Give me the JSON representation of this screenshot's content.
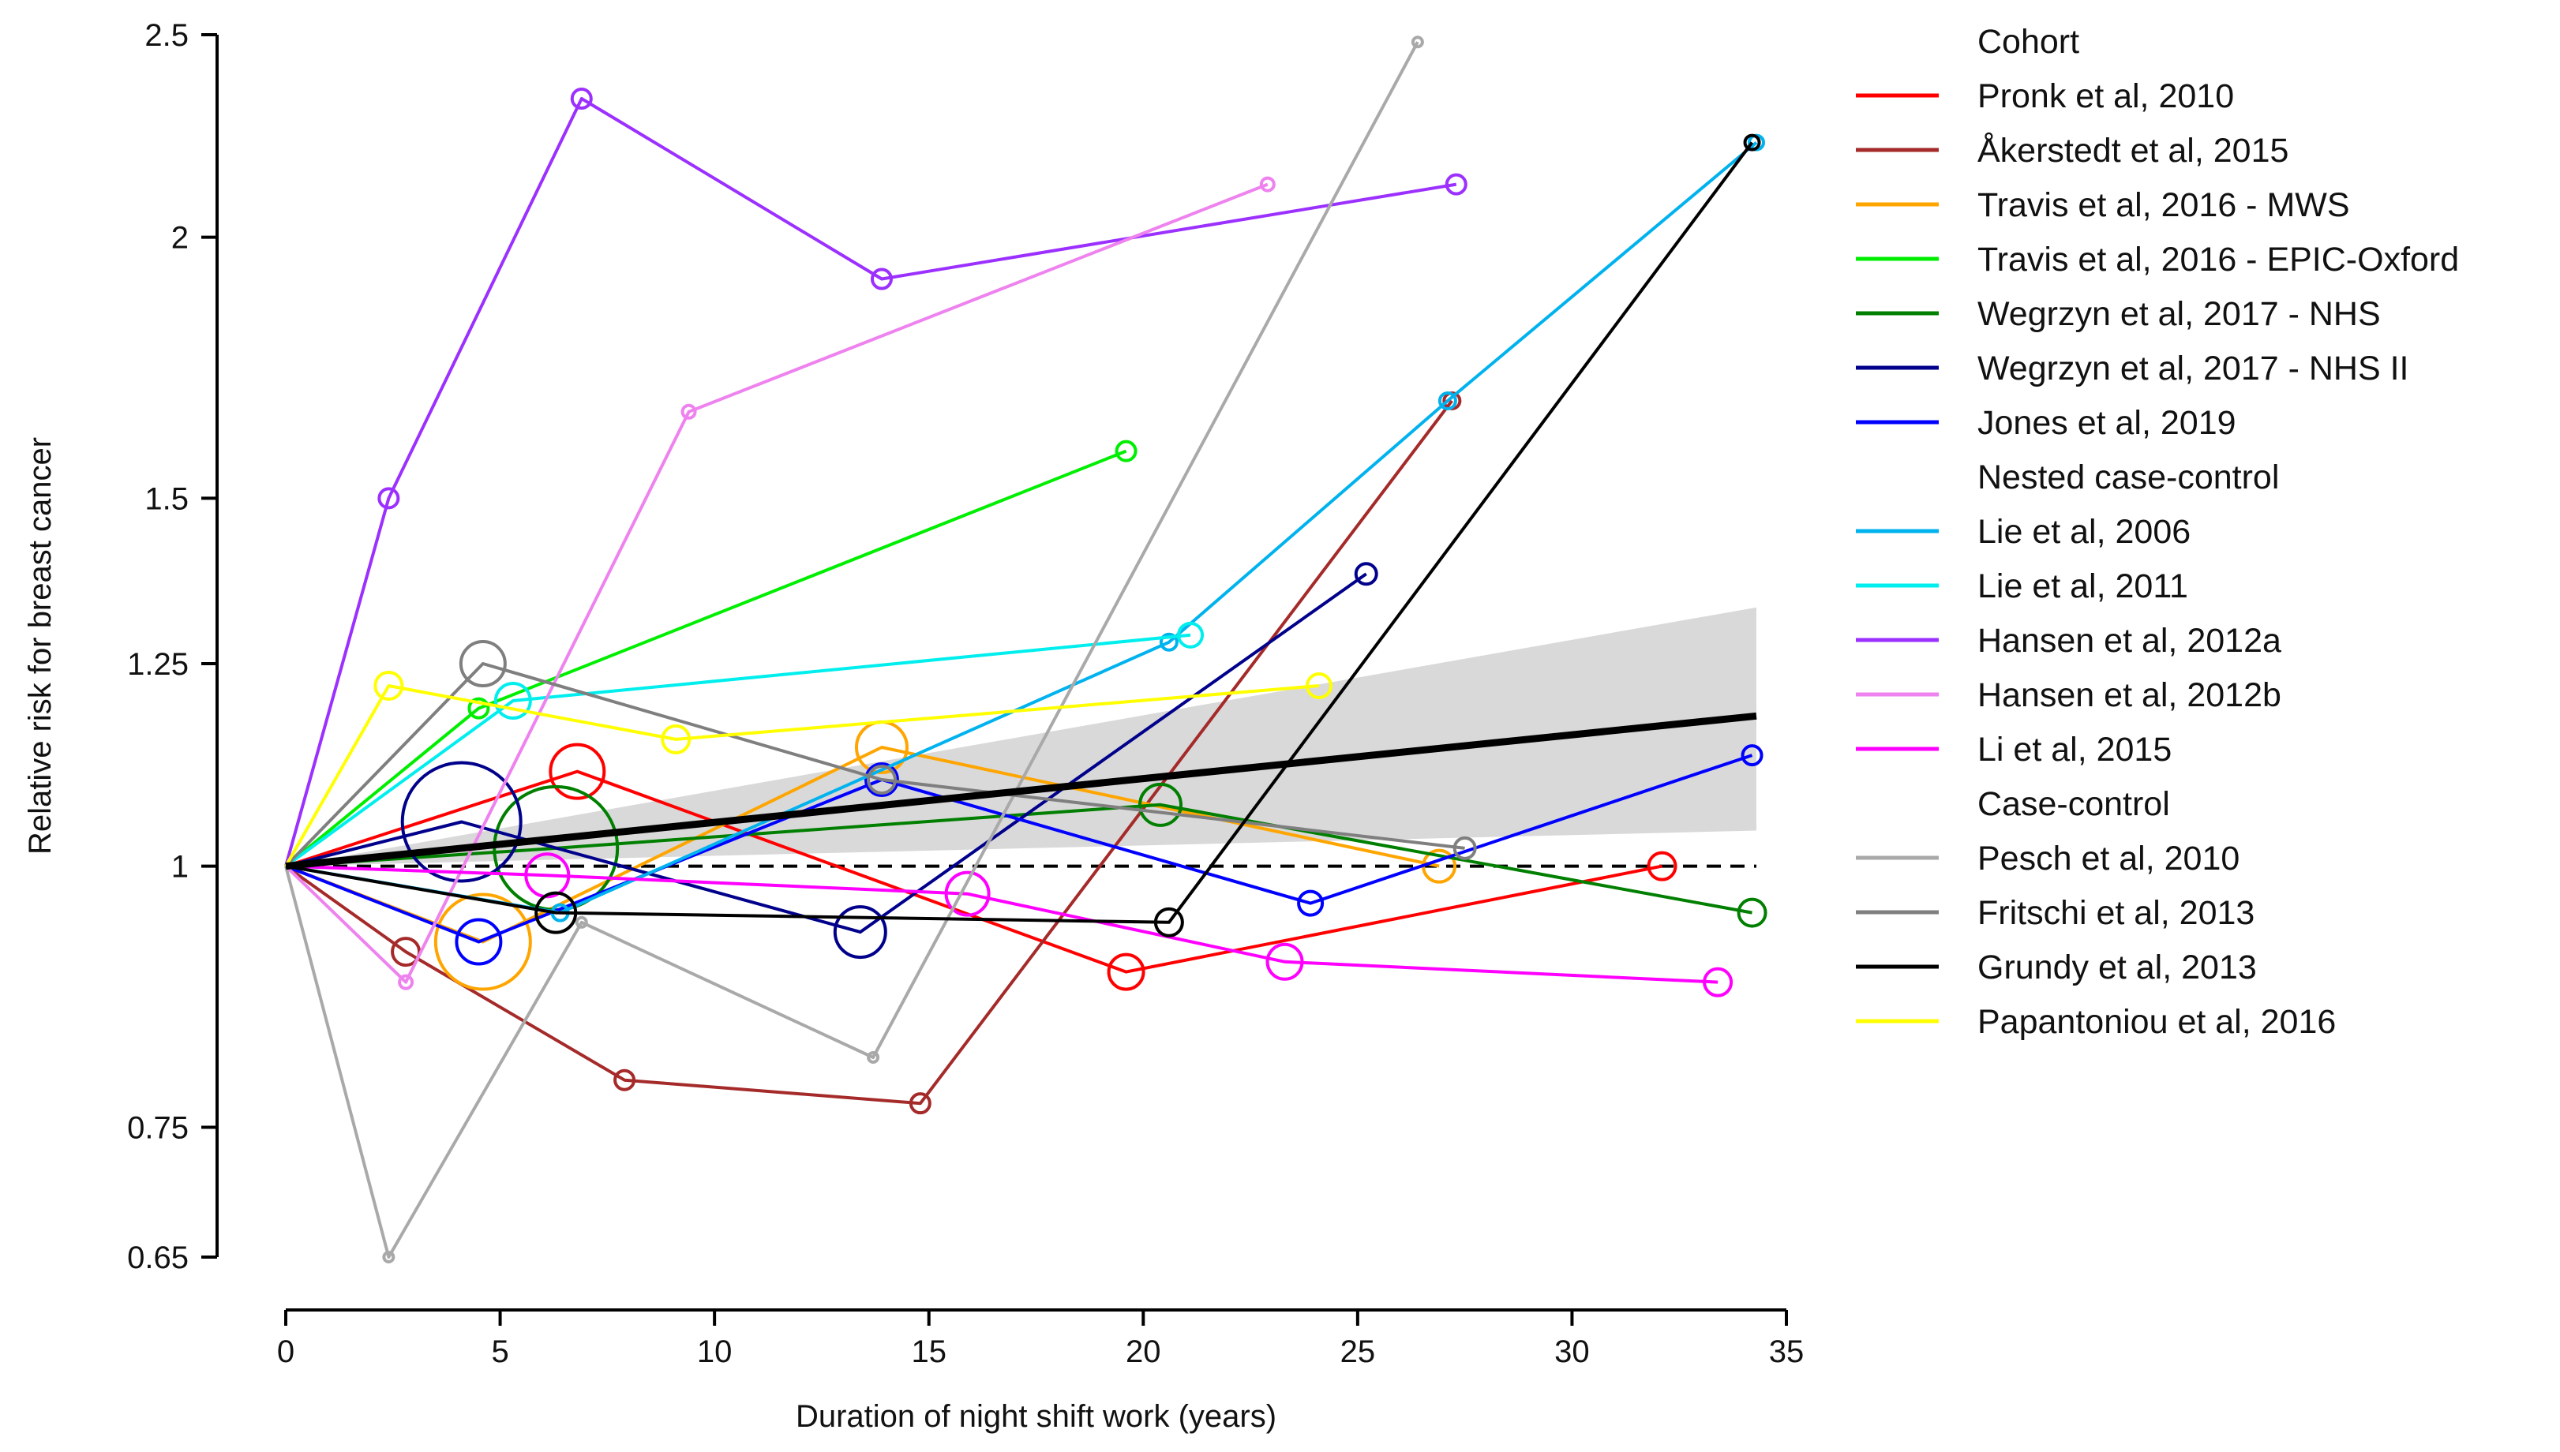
{
  "chart_data": {
    "type": "line",
    "title": "",
    "xlabel": "Duration of night shift work (years)",
    "ylabel": "Relative risk for breast cancer",
    "xlim": [
      0,
      35
    ],
    "ylim": [
      0.65,
      2.5
    ],
    "y_scale": "log",
    "x_ticks": [
      0,
      5,
      10,
      15,
      20,
      25,
      30,
      35
    ],
    "x_tick_labels": [
      "0",
      "5",
      "10",
      "15",
      "20",
      "25",
      "30",
      "35"
    ],
    "y_ticks": [
      0.65,
      0.75,
      1,
      1.25,
      1.5,
      2,
      2.5
    ],
    "y_tick_labels": [
      "0.65",
      "0.75",
      "1",
      "1.25",
      "1.5",
      "2",
      "2.5"
    ],
    "reference_line": {
      "y": 1,
      "style": "dashed"
    },
    "pooled_trend": {
      "name": "Pooled dose-response",
      "x": [
        0,
        34.3
      ],
      "y": [
        1,
        1.18
      ],
      "ci_band": {
        "x": [
          0,
          34.3
        ],
        "lower": [
          1,
          1.04
        ],
        "upper": [
          1,
          1.33
        ]
      }
    },
    "legend_groups": [
      {
        "group": "Cohort",
        "series": [
          "Pronk et al, 2010",
          "Åkerstedt et al, 2015",
          "Travis et al, 2016 - MWS",
          "Travis et al, 2016 - EPIC-Oxford",
          "Wegrzyn et al, 2017 - NHS",
          "Wegrzyn et al, 2017 - NHS II",
          "Jones et al, 2019"
        ]
      },
      {
        "group": "Nested case-control",
        "series": [
          "Lie et al, 2006",
          "Lie et al, 2011",
          "Hansen et al, 2012a",
          "Hansen et al, 2012b",
          "Li et al, 2015"
        ]
      },
      {
        "group": "Case-control",
        "series": [
          "Pesch et al, 2010",
          "Fritschi et al, 2013",
          "Grundy et al, 2013",
          "Papantoniou et al, 2016"
        ]
      }
    ],
    "series": [
      {
        "name": "Pronk et al, 2010",
        "color": "#ff0000",
        "points": [
          [
            0,
            1
          ],
          [
            6.8,
            1.11
          ],
          [
            19.6,
            0.89
          ],
          [
            32.1,
            1.0
          ]
        ],
        "marker_sizes": [
          0,
          34,
          22,
          17
        ]
      },
      {
        "name": "Åkerstedt et al, 2015",
        "color": "#a52a2a",
        "points": [
          [
            0,
            1
          ],
          [
            2.8,
            0.91
          ],
          [
            7.9,
            0.79
          ],
          [
            14.8,
            0.77
          ],
          [
            27.2,
            1.67
          ]
        ],
        "marker_sizes": [
          0,
          17,
          12,
          12,
          10
        ]
      },
      {
        "name": "Travis et al, 2016 - MWS",
        "color": "#ffa500",
        "points": [
          [
            0,
            1
          ],
          [
            4.6,
            0.92
          ],
          [
            13.9,
            1.14
          ],
          [
            26.9,
            1.0
          ]
        ],
        "marker_sizes": [
          0,
          60,
          32,
          20
        ]
      },
      {
        "name": "Travis et al, 2016 - EPIC-Oxford",
        "color": "#00ee00",
        "points": [
          [
            0,
            1
          ],
          [
            4.5,
            1.19
          ],
          [
            19.6,
            1.58
          ]
        ],
        "marker_sizes": [
          0,
          12,
          12
        ]
      },
      {
        "name": "Wegrzyn et al, 2017 - NHS",
        "color": "#007f00",
        "points": [
          [
            0,
            1
          ],
          [
            6.3,
            1.02
          ],
          [
            20.4,
            1.07
          ],
          [
            34.2,
            0.95
          ]
        ],
        "marker_sizes": [
          0,
          78,
          26,
          17
        ]
      },
      {
        "name": "Wegrzyn et al, 2017 - NHS II",
        "color": "#00008b",
        "points": [
          [
            0,
            1
          ],
          [
            4.1,
            1.05
          ],
          [
            13.4,
            0.93
          ],
          [
            25.2,
            1.38
          ]
        ],
        "marker_sizes": [
          0,
          75,
          32,
          13
        ]
      },
      {
        "name": "Jones et al, 2019",
        "color": "#0000ff",
        "points": [
          [
            0,
            1
          ],
          [
            4.5,
            0.92
          ],
          [
            13.9,
            1.1
          ],
          [
            23.9,
            0.96
          ],
          [
            34.2,
            1.13
          ]
        ],
        "marker_sizes": [
          0,
          28,
          20,
          15,
          12
        ]
      },
      {
        "name": "Lie et al, 2006",
        "color": "#00b2ee",
        "points": [
          [
            0,
            1
          ],
          [
            6.4,
            0.95
          ],
          [
            20.6,
            1.28
          ],
          [
            27.1,
            1.67
          ],
          [
            34.3,
            2.22
          ]
        ],
        "marker_sizes": [
          0,
          10,
          10,
          10,
          9
        ]
      },
      {
        "name": "Lie et al, 2011",
        "color": "#00eeee",
        "points": [
          [
            0,
            1
          ],
          [
            5.3,
            1.2
          ],
          [
            21.1,
            1.29
          ]
        ],
        "marker_sizes": [
          0,
          22,
          15
        ]
      },
      {
        "name": "Hansen et al, 2012a",
        "color": "#9b30ff",
        "points": [
          [
            0,
            1
          ],
          [
            2.4,
            1.5
          ],
          [
            6.9,
            2.33
          ],
          [
            13.9,
            1.91
          ],
          [
            27.3,
            2.12
          ]
        ],
        "marker_sizes": [
          0,
          12,
          12,
          12,
          12
        ]
      },
      {
        "name": "Hansen et al, 2012b",
        "color": "#ee82ee",
        "points": [
          [
            0,
            1
          ],
          [
            2.8,
            0.88
          ],
          [
            9.4,
            1.65
          ],
          [
            22.9,
            2.12
          ]
        ],
        "marker_sizes": [
          0,
          8,
          8,
          8
        ]
      },
      {
        "name": "Li et al, 2015",
        "color": "#ff00ff",
        "points": [
          [
            0,
            1
          ],
          [
            6.1,
            0.99
          ],
          [
            15.9,
            0.97
          ],
          [
            23.3,
            0.9
          ],
          [
            33.4,
            0.88
          ]
        ],
        "marker_sizes": [
          0,
          27,
          27,
          22,
          17
        ]
      },
      {
        "name": "Pesch et al, 2010",
        "color": "#a9a9a9",
        "points": [
          [
            0,
            1
          ],
          [
            2.4,
            0.65
          ],
          [
            6.9,
            0.94
          ],
          [
            13.7,
            0.81
          ],
          [
            26.4,
            2.48
          ]
        ],
        "marker_sizes": [
          0,
          6,
          6,
          6,
          6
        ]
      },
      {
        "name": "Fritschi et al, 2013",
        "color": "#7f7f7f",
        "points": [
          [
            0,
            1
          ],
          [
            4.6,
            1.25
          ],
          [
            13.9,
            1.1
          ],
          [
            27.5,
            1.02
          ]
        ],
        "marker_sizes": [
          0,
          28,
          17,
          13
        ]
      },
      {
        "name": "Grundy et al, 2013",
        "color": "#000000",
        "points": [
          [
            0,
            1
          ],
          [
            6.3,
            0.95
          ],
          [
            20.6,
            0.94
          ],
          [
            34.2,
            2.22
          ]
        ],
        "marker_sizes": [
          0,
          25,
          17,
          9
        ]
      },
      {
        "name": "Papantoniou et al, 2016",
        "color": "#ffff00",
        "points": [
          [
            0,
            1
          ],
          [
            2.4,
            1.22
          ],
          [
            9.1,
            1.15
          ],
          [
            24.1,
            1.22
          ]
        ],
        "marker_sizes": [
          0,
          17,
          17,
          15
        ]
      }
    ]
  }
}
